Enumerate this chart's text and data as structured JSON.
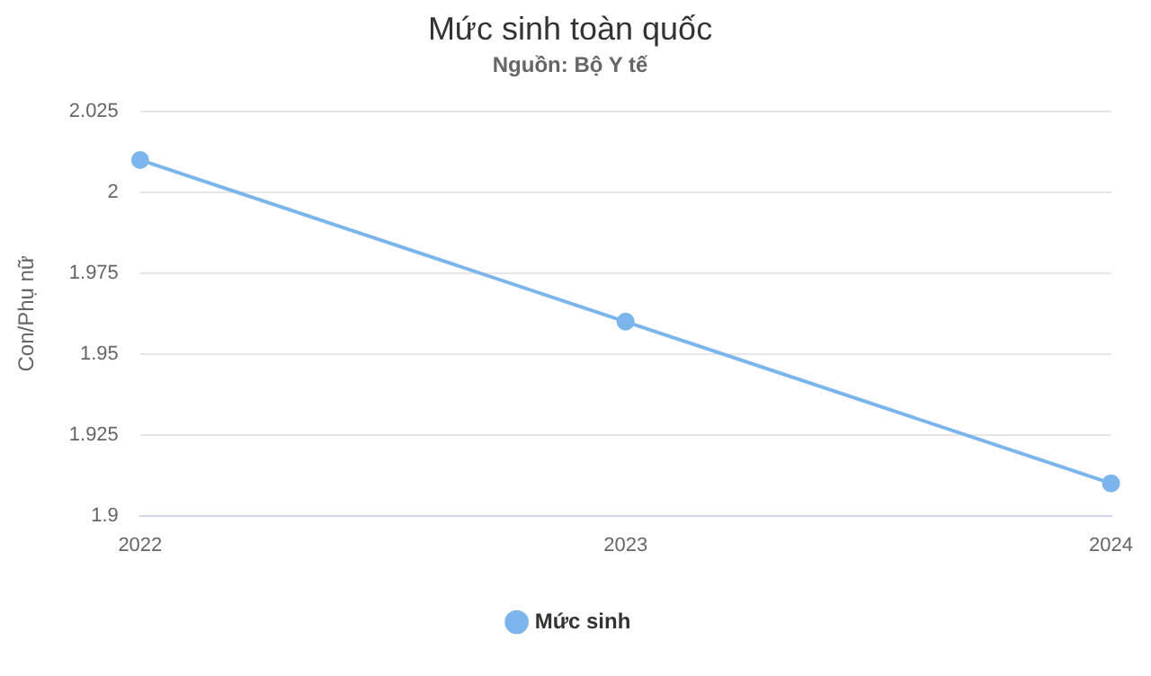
{
  "chart_data": {
    "type": "line",
    "title": "Mức sinh toàn quốc",
    "subtitle": "Nguồn: Bộ Y tế",
    "ylabel": "Con/Phụ nữ",
    "categories": [
      "2022",
      "2023",
      "2024"
    ],
    "series": [
      {
        "name": "Mức sinh",
        "color": "#7cb5ec",
        "values": [
          2.01,
          1.96,
          1.91
        ]
      }
    ],
    "ylim": [
      1.9,
      2.025
    ],
    "yticks": [
      1.9,
      1.925,
      1.95,
      1.975,
      2,
      2.025
    ],
    "grid": "y",
    "legend": "bottom",
    "marker": "circle",
    "line_style": "solid"
  }
}
